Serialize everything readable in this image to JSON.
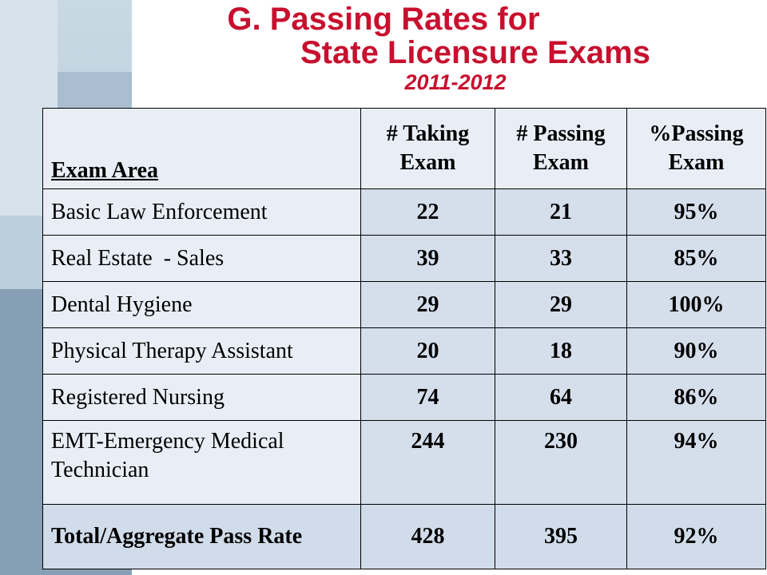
{
  "title": {
    "line1": "G. Passing Rates for",
    "line2": "State Licensure Exams",
    "line3": "2011-2012"
  },
  "table": {
    "headers": {
      "area": "Exam Area",
      "taking_line1": "# Taking",
      "taking_line2": "Exam",
      "passing_line1": "# Passing",
      "passing_line2": "Exam",
      "percent_line1": "%Passing",
      "percent_line2": "Exam"
    },
    "rows": [
      {
        "area": "Basic Law Enforcement",
        "taking": "22",
        "passing": "21",
        "percent": "95%"
      },
      {
        "area": "Real Estate  - Sales",
        "taking": "39",
        "passing": "33",
        "percent": "85%"
      },
      {
        "area": "Dental Hygiene",
        "taking": "29",
        "passing": "29",
        "percent": "100%"
      },
      {
        "area": "Physical Therapy Assistant",
        "taking": "20",
        "passing": "18",
        "percent": "90%"
      },
      {
        "area": "Registered Nursing",
        "taking": "74",
        "passing": "64",
        "percent": "86%"
      },
      {
        "area_line1": "EMT-Emergency Medical",
        "area_line2": "Technician",
        "taking": "244",
        "passing": "230",
        "percent": "94%"
      }
    ],
    "total": {
      "area": "Total/Aggregate Pass Rate",
      "taking": "428",
      "passing": "395",
      "percent": "92%"
    }
  },
  "colors": {
    "title_red": "#c8102e",
    "header_bg": "#e9eef6",
    "value_bg": "#d5deeb",
    "total_bg": "#d0dcea"
  }
}
